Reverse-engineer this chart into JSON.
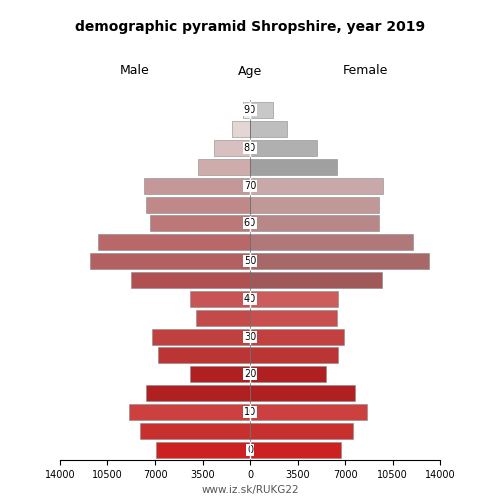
{
  "title": "demographic pyramid Shropshire, year 2019",
  "xlabel_left": "Male",
  "xlabel_right": "Female",
  "xlabel_center": "Age",
  "footer": "www.iz.sk/RUKG22",
  "ages": [
    0,
    5,
    10,
    15,
    20,
    25,
    30,
    35,
    40,
    45,
    50,
    55,
    60,
    65,
    70,
    75,
    80,
    85,
    90
  ],
  "male_values": [
    6900,
    8100,
    8900,
    7700,
    4400,
    6800,
    7200,
    4000,
    4400,
    8800,
    11800,
    11200,
    7400,
    7700,
    7800,
    3800,
    2650,
    1350,
    550
  ],
  "female_values": [
    6700,
    7600,
    8600,
    7700,
    5600,
    6500,
    6900,
    6400,
    6500,
    9700,
    13200,
    12000,
    9500,
    9500,
    9800,
    6400,
    4900,
    2750,
    1700
  ],
  "male_colors": [
    "#cd2020",
    "#c83030",
    "#cd4040",
    "#b02020",
    "#b02020",
    "#bc3535",
    "#c04040",
    "#c44a4a",
    "#c85555",
    "#b05050",
    "#b36060",
    "#b86868",
    "#bc7878",
    "#c08888",
    "#c49898",
    "#ceacac",
    "#d9c0c0",
    "#e5d5d5",
    "#f0ecec"
  ],
  "female_colors": [
    "#cd2020",
    "#c83030",
    "#cd4040",
    "#b02020",
    "#b02020",
    "#bc3535",
    "#c24040",
    "#c94e4e",
    "#cd5c5c",
    "#a05858",
    "#a86868",
    "#b07878",
    "#b88888",
    "#c09898",
    "#c8a8a8",
    "#a0a0a0",
    "#b0b0b0",
    "#bebebe",
    "#c8c8c8"
  ],
  "age_tick_labels": [
    "0",
    "10",
    "20",
    "30",
    "40",
    "50",
    "60",
    "70",
    "80",
    "90"
  ],
  "age_tick_positions": [
    0,
    2,
    4,
    6,
    8,
    10,
    12,
    14,
    16,
    18
  ],
  "xlim": 14000,
  "bar_height": 0.85,
  "background_color": "#ffffff",
  "edgecolor": "#888888"
}
